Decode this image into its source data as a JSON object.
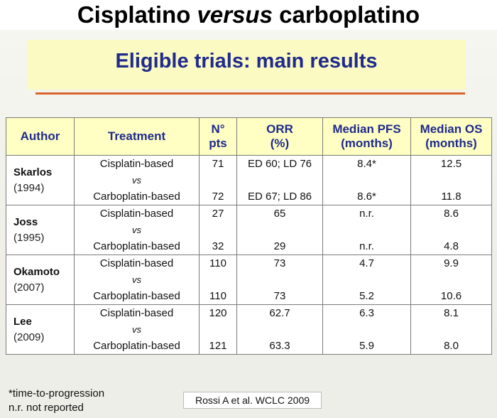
{
  "slide": {
    "title_part1": "Cisplatino ",
    "title_italic": "versus",
    "title_part2": " carboplatino",
    "banner": "Eligible trials: main results"
  },
  "table": {
    "headers": [
      [
        "Author"
      ],
      [
        "Treatment"
      ],
      [
        "N°",
        "pts"
      ],
      [
        "ORR",
        "(%)"
      ],
      [
        "Median PFS",
        "(months)"
      ],
      [
        "Median OS",
        "(months)"
      ]
    ],
    "vs_label": "vs",
    "rows": [
      {
        "author": "Skarlos",
        "year": "(1994)",
        "arm1": {
          "treatment": "Cisplatin-based",
          "n": "71",
          "orr": "ED 60; LD 76",
          "pfs": "8.4*",
          "os": "12.5"
        },
        "arm2": {
          "treatment": "Carboplatin-based",
          "n": "72",
          "orr": "ED 67; LD 86",
          "pfs": "8.6*",
          "os": "11.8"
        }
      },
      {
        "author": "Joss",
        "year": "(1995)",
        "arm1": {
          "treatment": "Cisplatin-based",
          "n": "27",
          "orr": "65",
          "pfs": "n.r.",
          "os": "8.6"
        },
        "arm2": {
          "treatment": "Carboplatin-based",
          "n": "32",
          "orr": "29",
          "pfs": "n.r.",
          "os": "4.8"
        }
      },
      {
        "author": "Okamoto",
        "year": "(2007)",
        "arm1": {
          "treatment": "Cisplatin-based",
          "n": "110",
          "orr": "73",
          "pfs": "4.7",
          "os": "9.9"
        },
        "arm2": {
          "treatment": "Carboplatin-based",
          "n": "110",
          "orr": "73",
          "pfs": "5.2",
          "os": "10.6"
        }
      },
      {
        "author": "Lee",
        "year": "(2009)",
        "arm1": {
          "treatment": "Cisplatin-based",
          "n": "120",
          "orr": "62.7",
          "pfs": "6.3",
          "os": "8.1"
        },
        "arm2": {
          "treatment": "Carboplatin-based",
          "n": "121",
          "orr": "63.3",
          "pfs": "5.9",
          "os": "8.0"
        }
      }
    ]
  },
  "footnotes": [
    "*time-to-progression",
    "n.r. not reported"
  ],
  "citation": "Rossi A et al. WCLC 2009",
  "colors": {
    "banner_bg": "#fafac2",
    "header_bg": "#ffffc4",
    "header_text": "#1f2a8c",
    "rule": "#d9642a"
  }
}
